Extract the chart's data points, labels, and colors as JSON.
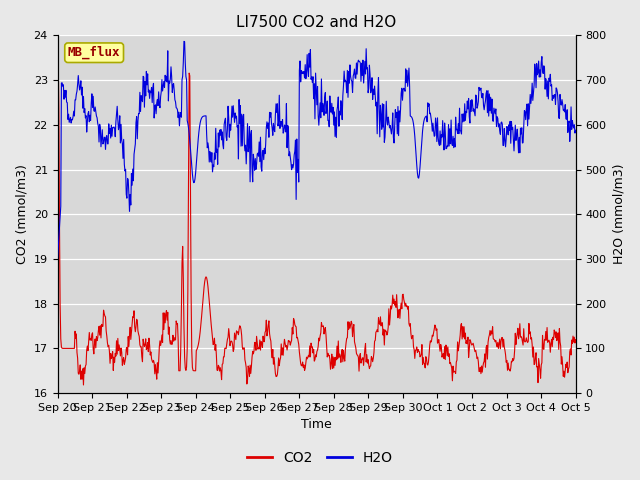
{
  "title": "LI7500 CO2 and H2O",
  "xlabel": "Time",
  "ylabel_left": "CO2 (mmol/m3)",
  "ylabel_right": "H2O (mmol/m3)",
  "co2_ylim": [
    16.0,
    24.0
  ],
  "h2o_ylim": [
    0,
    800
  ],
  "fig_bg_color": "#e8e8e8",
  "plot_bg_color": "#d8d8d8",
  "co2_color": "#dd0000",
  "h2o_color": "#0000dd",
  "annotation_text": "MB_flux",
  "annotation_bg": "#ffffa0",
  "annotation_border": "#aaaa00",
  "xtick_labels": [
    "Sep 20",
    "Sep 21",
    "Sep 22",
    "Sep 23",
    "Sep 24",
    "Sep 25",
    "Sep 26",
    "Sep 27",
    "Sep 28",
    "Sep 29",
    "Sep 30",
    "Oct 1",
    "Oct 2",
    "Oct 3",
    "Oct 4",
    "Oct 5"
  ],
  "title_fontsize": 11,
  "label_fontsize": 9,
  "tick_fontsize": 8,
  "legend_fontsize": 10
}
